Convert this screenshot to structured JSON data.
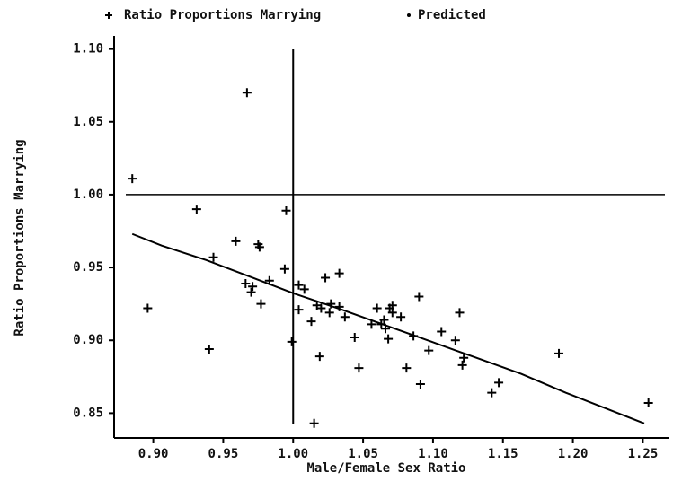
{
  "chart_data": {
    "type": "scatter",
    "x_label": "Male/Female Sex Ratio",
    "y_label": "Ratio Proportions Marrying",
    "xlim": [
      0.872,
      1.269
    ],
    "ylim": [
      0.833,
      1.109
    ],
    "xticks": [
      {
        "value": 0.9,
        "label": "0.90"
      },
      {
        "value": 0.95,
        "label": "0.95"
      },
      {
        "value": 1.0,
        "label": "1.00"
      },
      {
        "value": 1.05,
        "label": "1.05"
      },
      {
        "value": 1.1,
        "label": "1.10"
      },
      {
        "value": 1.15,
        "label": "1.15"
      },
      {
        "value": 1.2,
        "label": "1.20"
      },
      {
        "value": 1.25,
        "label": "1.25"
      }
    ],
    "yticks": [
      {
        "value": 0.85,
        "label": "0.85"
      },
      {
        "value": 0.9,
        "label": "0.90"
      },
      {
        "value": 0.95,
        "label": "0.95"
      },
      {
        "value": 1.0,
        "label": "1.00"
      },
      {
        "value": 1.05,
        "label": "1.05"
      },
      {
        "value": 1.1,
        "label": "1.10"
      }
    ],
    "reference_lines": {
      "x": 1.0,
      "y": 1.0
    },
    "series": [
      {
        "name": "Ratio Proportions Marrying",
        "color": "#000000",
        "marker": "+",
        "x": [
          0.885,
          0.896,
          0.931,
          0.94,
          0.943,
          0.959,
          0.967,
          0.966,
          0.97,
          0.971,
          0.975,
          0.976,
          0.977,
          0.983,
          0.994,
          0.995,
          0.999,
          1.004,
          1.004,
          1.008,
          1.013,
          1.015,
          1.017,
          1.019,
          1.02,
          1.023,
          1.026,
          1.027,
          1.033,
          1.033,
          1.037,
          1.044,
          1.047,
          1.056,
          1.06,
          1.063,
          1.065,
          1.066,
          1.068,
          1.069,
          1.071,
          1.071,
          1.077,
          1.081,
          1.086,
          1.09,
          1.091,
          1.097,
          1.106,
          1.116,
          1.119,
          1.121,
          1.122,
          1.142,
          1.147,
          1.19,
          1.254
        ],
        "values": [
          1.011,
          0.922,
          0.99,
          0.894,
          0.957,
          0.968,
          1.07,
          0.939,
          0.933,
          0.937,
          0.966,
          0.964,
          0.925,
          0.941,
          0.949,
          0.989,
          0.899,
          0.921,
          0.938,
          0.935,
          0.913,
          0.843,
          0.924,
          0.889,
          0.922,
          0.943,
          0.919,
          0.925,
          0.923,
          0.946,
          0.916,
          0.902,
          0.881,
          0.911,
          0.922,
          0.911,
          0.914,
          0.908,
          0.901,
          0.922,
          0.919,
          0.924,
          0.916,
          0.881,
          0.903,
          0.93,
          0.87,
          0.893,
          0.906,
          0.9,
          0.919,
          0.883,
          0.888,
          0.864,
          0.871,
          0.891,
          0.857
        ]
      },
      {
        "name": "Predicted",
        "color": "#000000",
        "marker": "line",
        "x": [
          0.885,
          0.906,
          0.938,
          0.971,
          1.001,
          1.035,
          1.067,
          1.099,
          1.131,
          1.163,
          1.195,
          1.227,
          1.251
        ],
        "values": [
          0.973,
          0.965,
          0.955,
          0.943,
          0.932,
          0.921,
          0.91,
          0.899,
          0.888,
          0.877,
          0.864,
          0.852,
          0.843
        ]
      }
    ]
  }
}
